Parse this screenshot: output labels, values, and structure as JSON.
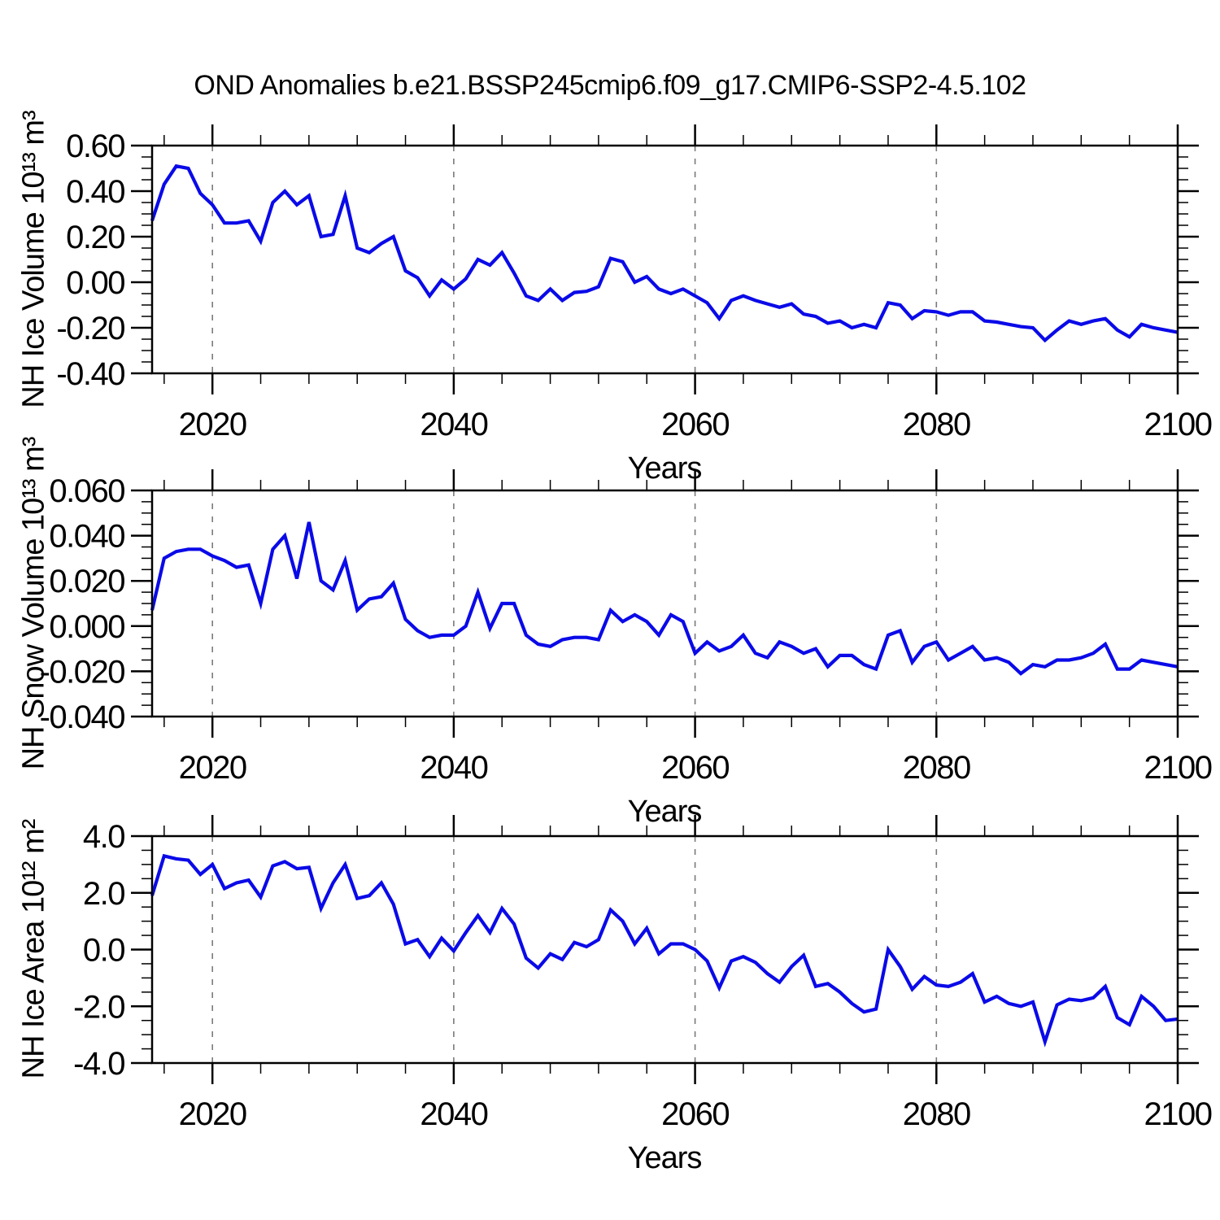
{
  "chart_data": {
    "type": "line",
    "title": "OND Anomalies b.e21.BSSP245cmip6.f09_g17.CMIP6-SSP2-4.5.102",
    "x_label": "Years",
    "x_range": [
      2015,
      2100
    ],
    "x_major_ticks": [
      2020,
      2040,
      2060,
      2080,
      2100
    ],
    "x_minor_step_years": 4,
    "grid_years": [
      2020,
      2040,
      2060,
      2080
    ],
    "grid_style": "dashed-vertical",
    "line_color": "#0a0ae8",
    "grid_color": "#7a7a7a",
    "years": [
      2015,
      2016,
      2017,
      2018,
      2019,
      2020,
      2021,
      2022,
      2023,
      2024,
      2025,
      2026,
      2027,
      2028,
      2029,
      2030,
      2031,
      2032,
      2033,
      2034,
      2035,
      2036,
      2037,
      2038,
      2039,
      2040,
      2041,
      2042,
      2043,
      2044,
      2045,
      2046,
      2047,
      2048,
      2049,
      2050,
      2051,
      2052,
      2053,
      2054,
      2055,
      2056,
      2057,
      2058,
      2059,
      2060,
      2061,
      2062,
      2063,
      2064,
      2065,
      2066,
      2067,
      2068,
      2069,
      2070,
      2071,
      2072,
      2073,
      2074,
      2075,
      2076,
      2077,
      2078,
      2079,
      2080,
      2081,
      2082,
      2083,
      2084,
      2085,
      2086,
      2087,
      2088,
      2089,
      2090,
      2091,
      2092,
      2093,
      2094,
      2095,
      2096,
      2097,
      2098,
      2099,
      2100
    ],
    "panels": [
      {
        "name": "nh-ice-volume",
        "ylabel": "NH Ice Volume 10¹³ m³",
        "ylim": [
          -0.4,
          0.6
        ],
        "y_major_step": 0.2,
        "y_minor_step": 0.05,
        "ytick_labels": [
          "0.60",
          "0.40",
          "0.20",
          "0.00",
          "-0.20",
          "-0.40"
        ],
        "values": [
          0.27,
          0.43,
          0.51,
          0.5,
          0.39,
          0.34,
          0.26,
          0.26,
          0.27,
          0.18,
          0.35,
          0.4,
          0.34,
          0.38,
          0.2,
          0.21,
          0.38,
          0.15,
          0.13,
          0.17,
          0.2,
          0.05,
          0.02,
          -0.06,
          0.01,
          -0.03,
          0.015,
          0.1,
          0.075,
          0.13,
          0.04,
          -0.06,
          -0.08,
          -0.03,
          -0.08,
          -0.045,
          -0.04,
          -0.02,
          0.105,
          0.09,
          0.0,
          0.025,
          -0.03,
          -0.05,
          -0.03,
          -0.06,
          -0.09,
          -0.16,
          -0.08,
          -0.06,
          -0.08,
          -0.095,
          -0.11,
          -0.095,
          -0.14,
          -0.15,
          -0.18,
          -0.17,
          -0.2,
          -0.185,
          -0.2,
          -0.09,
          -0.1,
          -0.16,
          -0.125,
          -0.13,
          -0.145,
          -0.13,
          -0.13,
          -0.17,
          -0.175,
          -0.185,
          -0.195,
          -0.2,
          -0.255,
          -0.21,
          -0.17,
          -0.185,
          -0.17,
          -0.16,
          -0.21,
          -0.24,
          -0.185,
          -0.2,
          -0.21,
          -0.22
        ]
      },
      {
        "name": "nh-snow-volume",
        "ylabel": "NH Snow Volume 10¹³ m³",
        "ylim": [
          -0.04,
          0.06
        ],
        "y_major_step": 0.02,
        "y_minor_step": 0.005,
        "ytick_labels": [
          "0.060",
          "0.040",
          "0.020",
          "0.000",
          "-0.020",
          "-0.040"
        ],
        "values": [
          0.007,
          0.03,
          0.033,
          0.034,
          0.034,
          0.031,
          0.029,
          0.026,
          0.027,
          0.01,
          0.034,
          0.04,
          0.021,
          0.046,
          0.02,
          0.016,
          0.029,
          0.007,
          0.012,
          0.013,
          0.019,
          0.003,
          -0.002,
          -0.005,
          -0.004,
          -0.004,
          0.0,
          0.015,
          -0.001,
          0.01,
          0.01,
          -0.004,
          -0.008,
          -0.009,
          -0.006,
          -0.005,
          -0.005,
          -0.006,
          0.007,
          0.002,
          0.005,
          0.002,
          -0.004,
          0.005,
          0.002,
          -0.012,
          -0.007,
          -0.011,
          -0.009,
          -0.004,
          -0.012,
          -0.014,
          -0.007,
          -0.009,
          -0.012,
          -0.01,
          -0.018,
          -0.013,
          -0.013,
          -0.017,
          -0.019,
          -0.004,
          -0.002,
          -0.016,
          -0.009,
          -0.007,
          -0.015,
          -0.012,
          -0.009,
          -0.015,
          -0.014,
          -0.016,
          -0.021,
          -0.017,
          -0.018,
          -0.015,
          -0.015,
          -0.014,
          -0.012,
          -0.008,
          -0.019,
          -0.019,
          -0.015,
          -0.016,
          -0.017,
          -0.018
        ]
      },
      {
        "name": "nh-ice-area",
        "ylabel": "NH Ice Area 10¹² m²",
        "ylim": [
          -4.0,
          4.0
        ],
        "y_major_step": 2.0,
        "y_minor_step": 0.5,
        "ytick_labels": [
          "4.0",
          "2.0",
          "0.0",
          "-2.0",
          "-4.0"
        ],
        "values": [
          1.9,
          3.3,
          3.2,
          3.15,
          2.65,
          3.0,
          2.15,
          2.35,
          2.45,
          1.85,
          2.95,
          3.1,
          2.85,
          2.9,
          1.45,
          2.35,
          3.0,
          1.8,
          1.9,
          2.35,
          1.6,
          0.2,
          0.35,
          -0.25,
          0.4,
          -0.05,
          0.6,
          1.2,
          0.6,
          1.45,
          0.9,
          -0.3,
          -0.65,
          -0.15,
          -0.35,
          0.25,
          0.1,
          0.35,
          1.4,
          1.0,
          0.2,
          0.75,
          -0.15,
          0.2,
          0.2,
          0.0,
          -0.4,
          -1.35,
          -0.4,
          -0.25,
          -0.45,
          -0.85,
          -1.15,
          -0.6,
          -0.2,
          -1.3,
          -1.2,
          -1.5,
          -1.9,
          -2.2,
          -2.1,
          0.0,
          -0.6,
          -1.4,
          -0.95,
          -1.25,
          -1.3,
          -1.15,
          -0.85,
          -1.85,
          -1.65,
          -1.9,
          -2.0,
          -1.85,
          -3.25,
          -1.95,
          -1.75,
          -1.8,
          -1.7,
          -1.3,
          -2.4,
          -2.65,
          -1.65,
          -2.0,
          -2.5,
          -2.45
        ]
      }
    ]
  }
}
